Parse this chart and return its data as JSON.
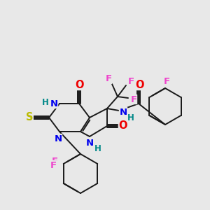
{
  "bg_color": "#e8e8e8",
  "bond_color": "#1a1a1a",
  "atom_colors": {
    "N": "#0000ee",
    "O": "#ee0000",
    "S": "#bbbb00",
    "F": "#ee44cc",
    "H": "#008888",
    "C": "#1a1a1a"
  },
  "font_size": 8.5,
  "lw": 1.4
}
